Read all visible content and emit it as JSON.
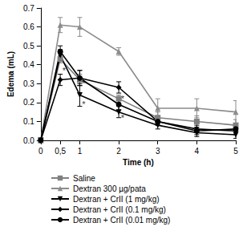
{
  "chart_data": {
    "type": "line",
    "x_label": "Time (h)",
    "y_label": "Edema (mL)",
    "x": [
      0,
      0.5,
      1,
      2,
      3,
      4,
      5
    ],
    "xlim": [
      0,
      5
    ],
    "xticks": [
      0,
      {
        "value": 0.5,
        "label": "0,5"
      },
      1,
      2,
      3,
      4,
      5
    ],
    "ylim": [
      0,
      0.7
    ],
    "yticks": [
      {
        "value": 0,
        "label": "0.0"
      },
      {
        "value": 0.1,
        "label": "0.1"
      },
      {
        "value": 0.2,
        "label": "0.2"
      },
      {
        "value": 0.3,
        "label": "0.3"
      },
      {
        "value": 0.4,
        "label": "0.4"
      },
      {
        "value": 0.5,
        "label": "0.5"
      },
      {
        "value": 0.6,
        "label": "0.6"
      },
      {
        "value": 0.7,
        "label": "0.7"
      }
    ],
    "grid": false,
    "legend": "bottom",
    "series": [
      {
        "name": "Saline",
        "color": "#808080",
        "marker": "square",
        "values": [
          0,
          0.43,
          0.32,
          0.22,
          0.12,
          0.1,
          0.08
        ],
        "errors": [
          0,
          0.02,
          0.03,
          0.02,
          0.03,
          0.03,
          0.03
        ]
      },
      {
        "name": "Dextran 300 µg/pata",
        "color": "#8c8c8c",
        "marker": "triangle",
        "values": [
          0,
          0.61,
          0.6,
          0.47,
          0.17,
          0.17,
          0.15
        ],
        "errors": [
          0,
          0.04,
          0.05,
          0.02,
          0.05,
          0.05,
          0.06
        ]
      },
      {
        "name": "Dextran + CrII (1 mg/kg)",
        "color": "#000000",
        "marker": "triangle_down",
        "values": [
          0,
          0.45,
          0.24,
          0.15,
          0.08,
          0.04,
          0.03
        ],
        "errors": [
          0,
          0.03,
          0.06,
          0.03,
          0.02,
          0.02,
          0.02
        ]
      },
      {
        "name": "Dextran + CrII (0.1 mg/kg)",
        "color": "#000000",
        "marker": "diamond",
        "values": [
          0,
          0.32,
          0.33,
          0.28,
          0.1,
          0.06,
          0.05
        ],
        "errors": [
          0,
          0.03,
          0.04,
          0.03,
          0.02,
          0.02,
          0.02
        ]
      },
      {
        "name": "Dextran + CrII (0.01 mg/kg)",
        "color": "#000000",
        "marker": "circle",
        "values": [
          0,
          0.47,
          0.33,
          0.19,
          0.1,
          0.05,
          0.06
        ],
        "errors": [
          0,
          0.03,
          0.04,
          0.03,
          0.02,
          0.02,
          0.02
        ]
      }
    ],
    "annotations": [
      {
        "text": "*",
        "x": 0.6,
        "y": 0.37
      },
      {
        "text": "*",
        "x": 1.1,
        "y": 0.3
      },
      {
        "text": "*",
        "x": 1.1,
        "y": 0.19
      },
      {
        "text": "*",
        "x": 2.1,
        "y": 0.22
      },
      {
        "text": "*",
        "x": 2.1,
        "y": 0.12
      }
    ]
  }
}
